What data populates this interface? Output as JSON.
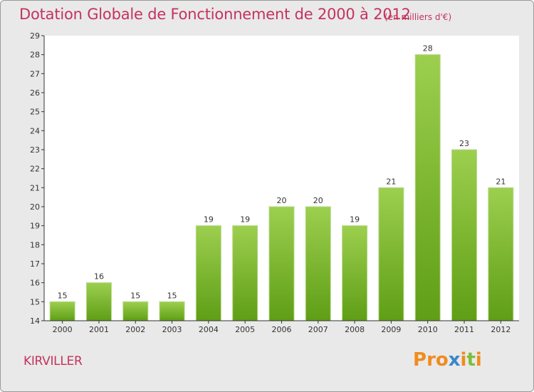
{
  "header": {
    "title": "Dotation Globale de Fonctionnement de 2000 à 2012",
    "subtitle": "(en milliers d'€)"
  },
  "footer": {
    "commune": "KIRVILLER",
    "logo_text": "Proxiti"
  },
  "colors": {
    "title": "#c4325e",
    "bar_light": "#9ccf4e",
    "bar_dark": "#5f9e16",
    "plot_background": "#ffffff",
    "frame_background": "#e9e9e9",
    "logo_letters": [
      "#f08c1e",
      "#f08c1e",
      "#f08c1e",
      "#3a87c9",
      "#f08c1e",
      "#7bbf3a",
      "#f08c1e"
    ]
  },
  "chart_data": {
    "type": "bar",
    "categories": [
      "2000",
      "2001",
      "2002",
      "2003",
      "2004",
      "2005",
      "2006",
      "2007",
      "2008",
      "2009",
      "2010",
      "2011",
      "2012"
    ],
    "values": [
      15,
      16,
      15,
      15,
      19,
      19,
      20,
      20,
      19,
      21,
      28,
      23,
      21
    ],
    "data_labels": [
      "15",
      "16",
      "15",
      "15",
      "19",
      "19",
      "20",
      "20",
      "19",
      "21",
      "28",
      "23",
      "21"
    ],
    "title": "Dotation Globale de Fonctionnement de 2000 à 2012",
    "subtitle": "(en milliers d'€)",
    "xlabel": "",
    "ylabel": "",
    "ylim": [
      14,
      29
    ],
    "yticks": [
      "14",
      "15",
      "16",
      "17",
      "18",
      "19",
      "20",
      "21",
      "22",
      "23",
      "24",
      "25",
      "26",
      "27",
      "28",
      "29"
    ],
    "grid": false,
    "legend": "none"
  }
}
